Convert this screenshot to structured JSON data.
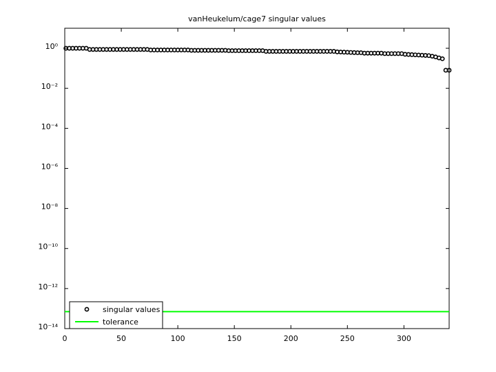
{
  "chart_data": {
    "type": "scatter",
    "title": "vanHeukelum/cage7 singular values",
    "log_y": true,
    "legend": "lower left",
    "xlim": [
      0,
      340
    ],
    "xticks": [
      0,
      50,
      100,
      150,
      200,
      250,
      300
    ],
    "ylim": [
      1e-14,
      10
    ],
    "yticks": [
      {
        "value": 1,
        "label": "10⁰"
      },
      {
        "value": 0.01,
        "label": "10⁻²"
      },
      {
        "value": 0.0001,
        "label": "10⁻⁴"
      },
      {
        "value": 1e-06,
        "label": "10⁻⁶"
      },
      {
        "value": 1e-08,
        "label": "10⁻⁸"
      },
      {
        "value": 1e-10,
        "label": "10⁻¹⁰"
      },
      {
        "value": 1e-12,
        "label": "10⁻¹²"
      },
      {
        "value": 1e-14,
        "label": "10⁻¹⁴"
      }
    ],
    "series": [
      {
        "name": "singular values",
        "color": "#000000",
        "x": [
          1,
          4,
          7,
          10,
          13,
          16,
          19,
          22,
          25,
          28,
          31,
          34,
          37,
          40,
          43,
          46,
          49,
          52,
          55,
          58,
          61,
          64,
          67,
          70,
          73,
          76,
          79,
          82,
          85,
          88,
          91,
          94,
          97,
          100,
          103,
          106,
          109,
          112,
          115,
          118,
          121,
          124,
          127,
          130,
          133,
          136,
          139,
          142,
          145,
          148,
          151,
          154,
          157,
          160,
          163,
          166,
          169,
          172,
          175,
          178,
          181,
          184,
          187,
          190,
          193,
          196,
          199,
          202,
          205,
          208,
          211,
          214,
          217,
          220,
          223,
          226,
          229,
          232,
          235,
          238,
          241,
          244,
          247,
          250,
          253,
          256,
          259,
          262,
          265,
          268,
          271,
          274,
          277,
          280,
          283,
          286,
          289,
          292,
          295,
          298,
          301,
          304,
          307,
          310,
          313,
          316,
          319,
          322,
          325,
          328,
          331,
          334,
          337,
          340
        ],
        "values": [
          1,
          1,
          1,
          1,
          1,
          1,
          1,
          0.87,
          0.87,
          0.87,
          0.87,
          0.87,
          0.87,
          0.87,
          0.87,
          0.87,
          0.87,
          0.87,
          0.87,
          0.87,
          0.87,
          0.87,
          0.87,
          0.87,
          0.87,
          0.82,
          0.82,
          0.82,
          0.82,
          0.82,
          0.82,
          0.82,
          0.82,
          0.82,
          0.82,
          0.82,
          0.82,
          0.79,
          0.79,
          0.79,
          0.79,
          0.79,
          0.79,
          0.79,
          0.79,
          0.79,
          0.79,
          0.79,
          0.76,
          0.76,
          0.76,
          0.76,
          0.76,
          0.76,
          0.76,
          0.76,
          0.76,
          0.76,
          0.76,
          0.7,
          0.7,
          0.7,
          0.7,
          0.7,
          0.7,
          0.7,
          0.7,
          0.7,
          0.7,
          0.7,
          0.7,
          0.7,
          0.7,
          0.7,
          0.7,
          0.7,
          0.7,
          0.7,
          0.7,
          0.7,
          0.66,
          0.65,
          0.64,
          0.63,
          0.62,
          0.61,
          0.6,
          0.6,
          0.57,
          0.57,
          0.57,
          0.57,
          0.57,
          0.57,
          0.54,
          0.54,
          0.54,
          0.54,
          0.54,
          0.54,
          0.5,
          0.49,
          0.48,
          0.47,
          0.46,
          0.45,
          0.44,
          0.43,
          0.4,
          0.37,
          0.33,
          0.3,
          0.08,
          0.08
        ]
      }
    ],
    "tolerance": {
      "name": "tolerance",
      "color": "#00ff00",
      "value": 7e-14
    }
  }
}
